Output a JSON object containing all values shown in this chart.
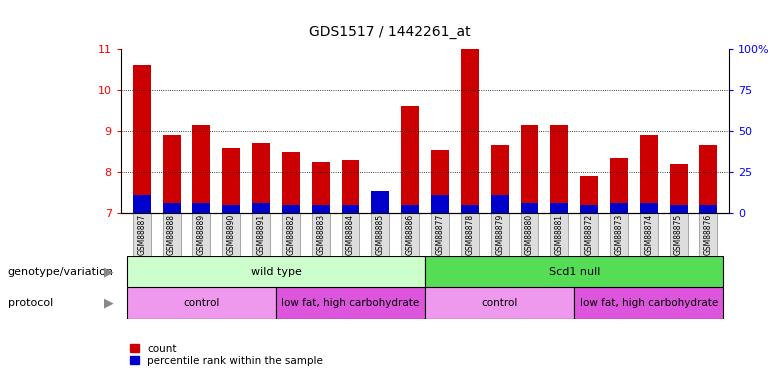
{
  "title": "GDS1517 / 1442261_at",
  "samples": [
    "GSM88887",
    "GSM88888",
    "GSM88889",
    "GSM88890",
    "GSM88891",
    "GSM88882",
    "GSM88883",
    "GSM88884",
    "GSM88885",
    "GSM88886",
    "GSM88877",
    "GSM88878",
    "GSM88879",
    "GSM88880",
    "GSM88881",
    "GSM88872",
    "GSM88873",
    "GSM88874",
    "GSM88875",
    "GSM88876"
  ],
  "red_values": [
    10.6,
    8.9,
    9.15,
    8.6,
    8.7,
    8.5,
    8.25,
    8.3,
    7.2,
    9.6,
    8.55,
    11.0,
    8.65,
    9.15,
    9.15,
    7.9,
    8.35,
    8.9,
    8.2,
    8.65
  ],
  "blue_values": [
    7.45,
    7.25,
    7.25,
    7.2,
    7.25,
    7.2,
    7.2,
    7.2,
    7.55,
    7.2,
    7.45,
    7.2,
    7.45,
    7.25,
    7.25,
    7.2,
    7.25,
    7.25,
    7.2,
    7.2
  ],
  "y_min": 7,
  "y_max": 11,
  "y_ticks": [
    7,
    8,
    9,
    10,
    11
  ],
  "y2_ticks_pct": [
    "0",
    "25",
    "50",
    "75",
    "100%"
  ],
  "red_color": "#cc0000",
  "blue_color": "#0000cc",
  "bar_width": 0.6,
  "genotype_groups": [
    {
      "label": "wild type",
      "start": 0,
      "end": 10,
      "color": "#ccffcc"
    },
    {
      "label": "Scd1 null",
      "start": 10,
      "end": 20,
      "color": "#55dd55"
    }
  ],
  "protocol_groups": [
    {
      "label": "control",
      "start": 0,
      "end": 5,
      "color": "#ee99ee"
    },
    {
      "label": "low fat, high carbohydrate",
      "start": 5,
      "end": 10,
      "color": "#dd55dd"
    },
    {
      "label": "control",
      "start": 10,
      "end": 15,
      "color": "#ee99ee"
    },
    {
      "label": "low fat, high carbohydrate",
      "start": 15,
      "end": 20,
      "color": "#dd55dd"
    }
  ],
  "genotype_label": "genotype/variation",
  "protocol_label": "protocol",
  "legend_red": "count",
  "legend_blue": "percentile rank within the sample",
  "bg_color": "#ffffff",
  "sample_box_color": "#dddddd",
  "grid_color": "#000000"
}
